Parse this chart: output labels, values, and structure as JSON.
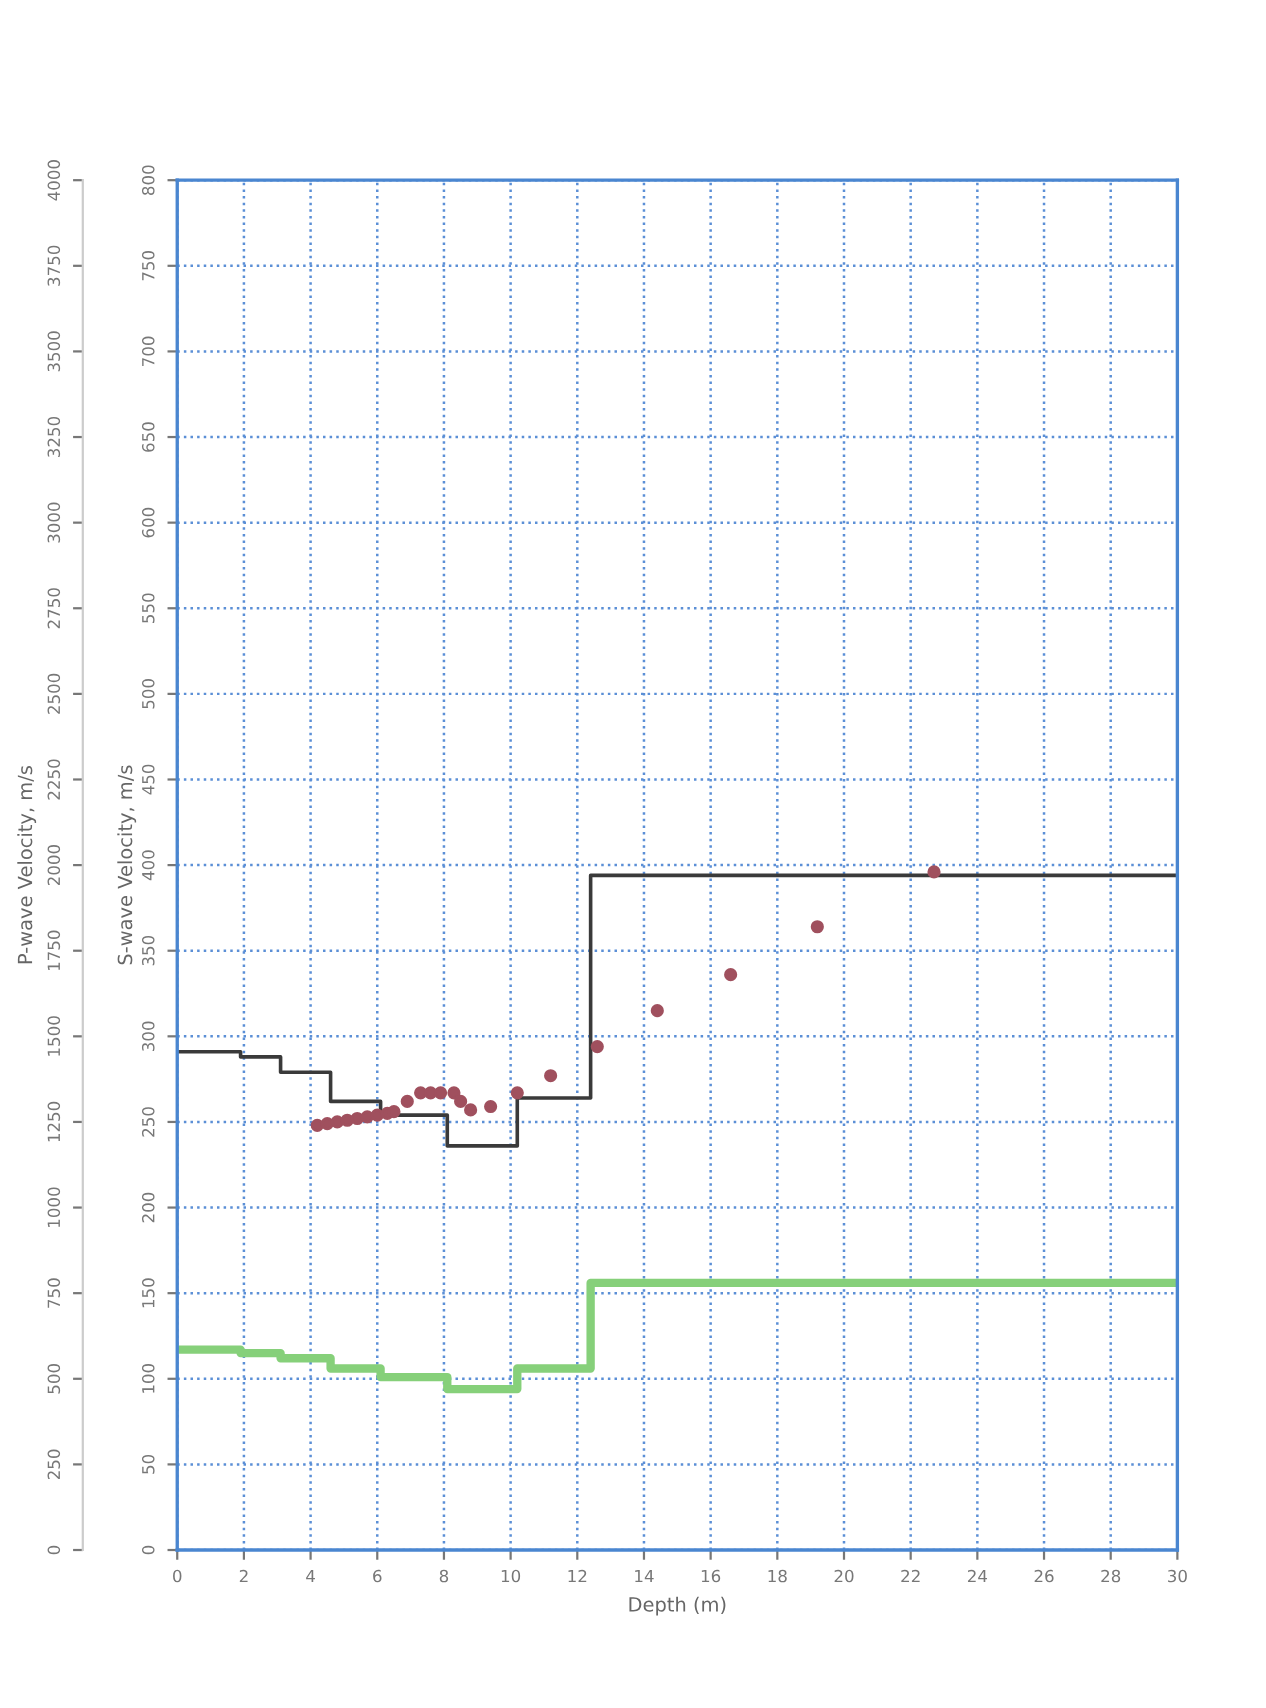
{
  "chart_data": {
    "type": "step",
    "xlabel": "Depth (m)",
    "ylabel": "S-wave Velocity, m/s",
    "y2label": "P-wave Velocity, m/s",
    "xlim": [
      0,
      30
    ],
    "xticks": [
      0,
      2,
      4,
      6,
      8,
      10,
      12,
      14,
      16,
      18,
      20,
      22,
      24,
      26,
      28,
      30
    ],
    "ylim": [
      0,
      800
    ],
    "yticks": [
      0,
      50,
      100,
      150,
      200,
      250,
      300,
      350,
      400,
      450,
      500,
      550,
      600,
      650,
      700,
      750,
      800
    ],
    "y2lim": [
      0,
      4000
    ],
    "y2ticks": [
      0,
      250,
      500,
      750,
      1000,
      1250,
      1500,
      1750,
      2000,
      2250,
      2500,
      2750,
      3000,
      3250,
      3500,
      3750,
      4000
    ],
    "grid": true,
    "series": [
      {
        "color": "#3a3a3a",
        "x": [
          0,
          1.9,
          3.1,
          4.6,
          6.1,
          8.1,
          10.2,
          12.4,
          30
        ],
        "values": [
          291,
          288,
          279,
          262,
          254,
          236,
          264,
          394,
          394
        ]
      },
      {
        "color": "#86d07a",
        "x": [
          0,
          1.9,
          3.1,
          4.6,
          6.1,
          8.1,
          10.2,
          12.4,
          30
        ],
        "values": [
          117,
          115,
          112,
          106,
          101,
          94,
          106,
          156,
          156
        ]
      },
      {
        "type": "scatter",
        "color": "#a0505e",
        "marker": "circle",
        "x": [
          4.2,
          4.5,
          4.8,
          5.1,
          5.4,
          5.7,
          6.0,
          6.3,
          6.5,
          6.9,
          7.3,
          7.6,
          7.9,
          8.3,
          8.5,
          8.8,
          9.4,
          10.2,
          11.2,
          12.6,
          14.4,
          16.6,
          19.2,
          22.7
        ],
        "values": [
          248,
          249,
          250,
          251,
          252,
          253,
          254,
          255,
          256,
          262,
          267,
          267,
          267,
          267,
          262,
          257,
          259,
          267,
          277,
          294,
          315,
          336,
          364,
          396
        ]
      }
    ]
  }
}
